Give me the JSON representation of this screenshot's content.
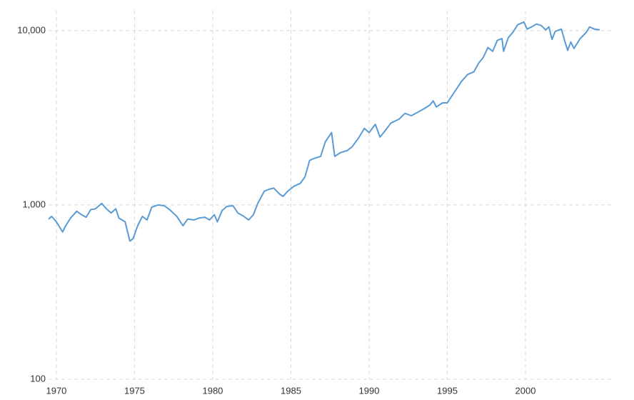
{
  "chart_data": {
    "type": "line",
    "log_scale": true,
    "grid": true,
    "color": "#5b9bd5",
    "x": [
      1969.5,
      1969.7,
      1970.0,
      1970.4,
      1970.6,
      1970.9,
      1971.3,
      1971.6,
      1971.9,
      1972.2,
      1972.5,
      1972.9,
      1973.2,
      1973.5,
      1973.8,
      1974.0,
      1974.4,
      1974.7,
      1974.9,
      1975.2,
      1975.5,
      1975.8,
      1976.1,
      1976.5,
      1976.9,
      1977.3,
      1977.7,
      1978.1,
      1978.4,
      1978.8,
      1979.1,
      1979.5,
      1979.8,
      1980.1,
      1980.3,
      1980.6,
      1980.9,
      1981.3,
      1981.6,
      1981.9,
      1982.3,
      1982.6,
      1982.9,
      1983.3,
      1983.6,
      1983.9,
      1984.3,
      1984.5,
      1984.8,
      1985.2,
      1985.6,
      1985.9,
      1986.2,
      1986.5,
      1986.9,
      1987.2,
      1987.6,
      1987.8,
      1988.2,
      1988.6,
      1988.9,
      1989.3,
      1989.7,
      1990.0,
      1990.4,
      1990.7,
      1991.0,
      1991.4,
      1991.9,
      1992.3,
      1992.7,
      1993.1,
      1993.6,
      1993.9,
      1994.1,
      1994.3,
      1994.7,
      1995.0,
      1995.5,
      1995.9,
      1996.3,
      1996.7,
      1997.0,
      1997.3,
      1997.6,
      1997.9,
      1998.2,
      1998.5,
      1998.6,
      1998.9,
      1999.2,
      1999.5,
      1999.9,
      2000.1,
      2000.4,
      2000.7,
      2001.0,
      2001.3,
      2001.5,
      2001.7,
      2001.9,
      2002.3,
      2002.5,
      2002.7,
      2002.9,
      2003.1,
      2003.5,
      2003.9,
      2004.1,
      2004.4,
      2004.75
    ],
    "values": [
      830,
      860,
      800,
      700,
      760,
      840,
      920,
      880,
      850,
      940,
      950,
      1020,
      950,
      900,
      950,
      840,
      800,
      620,
      640,
      760,
      860,
      820,
      970,
      1000,
      990,
      930,
      860,
      760,
      830,
      820,
      840,
      850,
      820,
      880,
      800,
      930,
      980,
      990,
      900,
      870,
      820,
      880,
      1030,
      1200,
      1230,
      1250,
      1150,
      1120,
      1200,
      1280,
      1330,
      1450,
      1800,
      1850,
      1900,
      2300,
      2600,
      1900,
      2000,
      2050,
      2150,
      2400,
      2750,
      2600,
      2900,
      2450,
      2650,
      2950,
      3100,
      3350,
      3250,
      3400,
      3600,
      3750,
      3950,
      3650,
      3850,
      3850,
      4500,
      5100,
      5600,
      5800,
      6500,
      7000,
      8000,
      7600,
      8800,
      9000,
      7600,
      9100,
      9800,
      10800,
      11200,
      10200,
      10500,
      10900,
      10700,
      10100,
      10500,
      8900,
      9900,
      10200,
      8800,
      7700,
      8600,
      7900,
      9000,
      9800,
      10500,
      10200,
      10100
    ],
    "xlim": [
      1969.5,
      2004.75
    ],
    "ylim": [
      100,
      13000
    ],
    "xticks": [
      1970,
      1975,
      1980,
      1985,
      1990,
      1995,
      2000
    ],
    "yticks": [
      100,
      {
        "value": 1000,
        "label": "1,000"
      },
      {
        "value": 10000,
        "label": "10,000"
      }
    ]
  }
}
